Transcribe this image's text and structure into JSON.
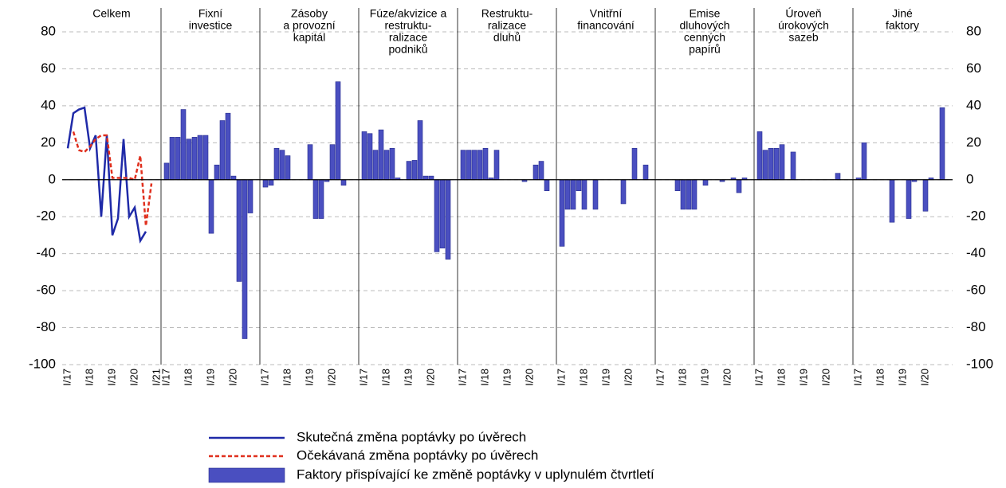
{
  "chart_data": {
    "type": "bar",
    "ylim": [
      -100,
      80
    ],
    "yticks": [
      -100,
      -80,
      -60,
      -40,
      -20,
      0,
      20,
      40,
      60,
      80
    ],
    "grid": true,
    "bar_name": "Faktory přispívající ke změně poptávky v uplynulém čtvrtletí",
    "bar_color": "#4a4fc0",
    "line_series": [
      {
        "name": "Skutečná změna poptávky po úvěrech",
        "color": "#1f2aa8",
        "dashed": false,
        "values": [
          17,
          36,
          38,
          39,
          17,
          24,
          -20,
          24,
          -30,
          -21,
          22,
          -20,
          -15,
          -33,
          -28,
          null,
          null
        ]
      },
      {
        "name": "Očekávaná změna poptávky po úvěrech",
        "color": "#e0301e",
        "dashed": true,
        "values": [
          null,
          26,
          16,
          15,
          18,
          22,
          24,
          24,
          1,
          1,
          1,
          1,
          0,
          13,
          -25,
          -2,
          null
        ]
      }
    ],
    "panels": [
      {
        "title": [
          "Celkem"
        ],
        "categories": [
          "I/17",
          null,
          null,
          null,
          "I/18",
          null,
          null,
          null,
          "I/19",
          null,
          null,
          null,
          "I/20",
          null,
          null,
          null,
          "I/21"
        ]
      },
      {
        "title": [
          "Fixní",
          "investice"
        ],
        "categories": [
          "I/17",
          null,
          null,
          null,
          "I/18",
          null,
          null,
          null,
          "I/19",
          null,
          null,
          null,
          "I/20",
          null,
          null,
          null
        ],
        "values": [
          9,
          23,
          23,
          38,
          22,
          23,
          24,
          24,
          -29,
          8,
          32,
          36,
          2,
          -55,
          -86,
          -18
        ]
      },
      {
        "title": [
          "Zásoby",
          "a provozní",
          "kapitál"
        ],
        "categories": [
          "I/17",
          null,
          null,
          null,
          "I/18",
          null,
          null,
          null,
          "I/19",
          null,
          null,
          null,
          "I/20",
          null,
          null,
          null
        ],
        "values": [
          -4,
          -3,
          17,
          16,
          13,
          0,
          0,
          0,
          19,
          -21,
          -21,
          -1,
          19,
          53,
          -3,
          0
        ]
      },
      {
        "title": [
          "Fúze/akvizice a",
          "restruktu-",
          "ralizace",
          "podniků"
        ],
        "categories": [
          "I/17",
          null,
          null,
          null,
          "I/18",
          null,
          null,
          null,
          "I/19",
          null,
          null,
          null,
          "I/20",
          null,
          null,
          null
        ],
        "values": [
          26,
          25,
          16,
          27,
          16,
          17,
          1,
          0,
          10,
          10.5,
          32,
          2,
          2,
          -39,
          -37,
          -43
        ]
      },
      {
        "title": [
          "Restruktu-",
          "ralizace",
          "dluhů"
        ],
        "categories": [
          "I/17",
          null,
          null,
          null,
          "I/18",
          null,
          null,
          null,
          "I/19",
          null,
          null,
          null,
          "I/20",
          null,
          null,
          null
        ],
        "values": [
          16,
          16,
          16,
          16,
          17,
          1,
          16,
          0,
          0,
          0,
          0,
          -1,
          0,
          8,
          10,
          -6
        ]
      },
      {
        "title": [
          "Vnitřní",
          "financování"
        ],
        "categories": [
          "I/17",
          null,
          null,
          null,
          "I/18",
          null,
          null,
          null,
          "I/19",
          null,
          null,
          null,
          "I/20",
          null,
          null,
          null
        ],
        "values": [
          -36,
          -16,
          -16,
          -6,
          -16,
          0,
          -16,
          0,
          0,
          0,
          0,
          -13,
          0,
          17,
          0,
          8
        ]
      },
      {
        "title": [
          "Emise",
          "dluhových",
          "cenných",
          "papírů"
        ],
        "categories": [
          "I/17",
          null,
          null,
          null,
          "I/18",
          null,
          null,
          null,
          "I/19",
          null,
          null,
          null,
          "I/20",
          null,
          null,
          null
        ],
        "values": [
          0,
          0,
          0,
          -6,
          -16,
          -16,
          -16,
          0,
          -3,
          0,
          0,
          -1,
          0,
          1,
          -7,
          1
        ]
      },
      {
        "title": [
          "Úroveň",
          "úrokových",
          "sazeb"
        ],
        "categories": [
          "I/17",
          null,
          null,
          null,
          "I/18",
          null,
          null,
          null,
          "I/19",
          null,
          null,
          null,
          "I/20",
          null,
          null,
          null
        ],
        "values": [
          26,
          16,
          17,
          17,
          19,
          0,
          15,
          0,
          0,
          0,
          0,
          0,
          0,
          0,
          3.5,
          0
        ]
      },
      {
        "title": [
          "Jiné",
          "faktory"
        ],
        "categories": [
          "I/17",
          null,
          null,
          null,
          "I/18",
          null,
          null,
          null,
          "I/19",
          null,
          null,
          null,
          "I/20",
          null,
          null,
          null
        ],
        "values": [
          1,
          20,
          0,
          0,
          0,
          0,
          -23,
          0,
          0,
          -21,
          -1,
          0,
          -17,
          1,
          0,
          39
        ]
      }
    ]
  }
}
